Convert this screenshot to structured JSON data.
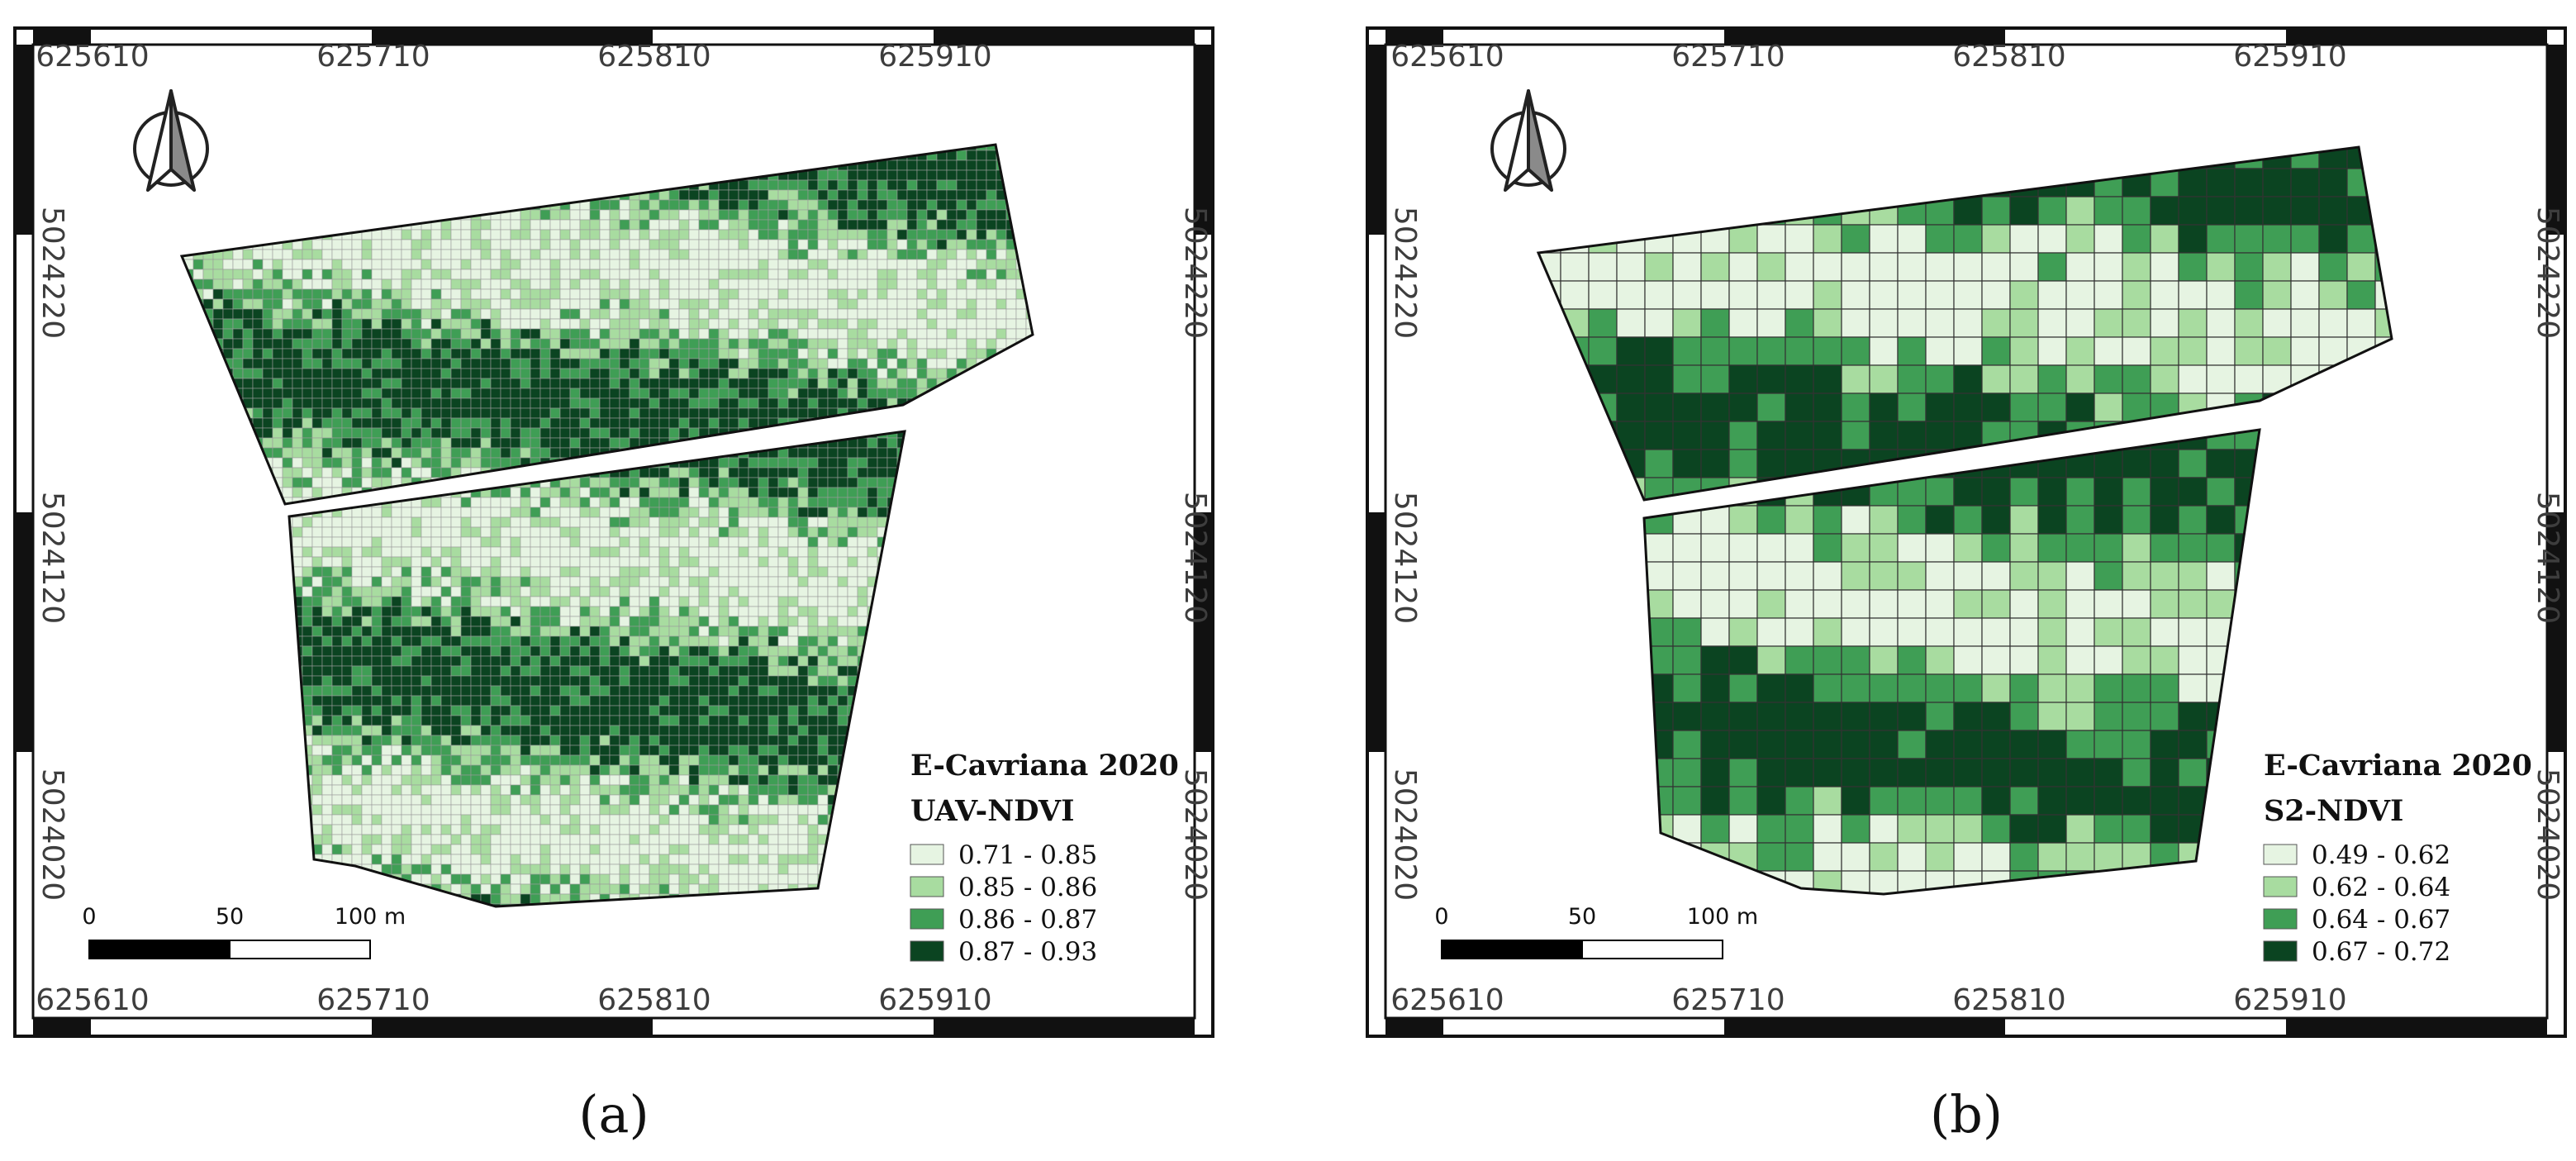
{
  "panels": [
    {
      "id": "a",
      "caption": "(a)",
      "legend": {
        "title": "E-Cavriana 2020",
        "subtitle": "UAV-NDVI",
        "classes": [
          {
            "label": "0.71 - 0.85",
            "color": "#e6f4e2"
          },
          {
            "label": "0.85 - 0.86",
            "color": "#a8dca0"
          },
          {
            "label": "0.86 - 0.87",
            "color": "#3f9e55"
          },
          {
            "label": "0.87 - 0.93",
            "color": "#0b4421"
          }
        ]
      },
      "x_ticks": [
        "625610",
        "625710",
        "625810",
        "625910"
      ],
      "y_ticks": [
        "5024220",
        "5024120",
        "5024020"
      ],
      "scalebar": {
        "labels": [
          "0",
          "50",
          "100 m"
        ]
      }
    },
    {
      "id": "b",
      "caption": "(b)",
      "legend": {
        "title": "E-Cavriana 2020",
        "subtitle": "S2-NDVI",
        "classes": [
          {
            "label": "0.49 - 0.62",
            "color": "#e6f4e2"
          },
          {
            "label": "0.62 - 0.64",
            "color": "#a8dca0"
          },
          {
            "label": "0.64 - 0.67",
            "color": "#3f9e55"
          },
          {
            "label": "0.67 - 0.72",
            "color": "#0b4421"
          }
        ]
      },
      "x_ticks": [
        "625610",
        "625710",
        "625810",
        "625910"
      ],
      "y_ticks": [
        "5024220",
        "5024120",
        "5024020"
      ],
      "scalebar": {
        "labels": [
          "0",
          "50",
          "100 m"
        ]
      }
    }
  ]
}
